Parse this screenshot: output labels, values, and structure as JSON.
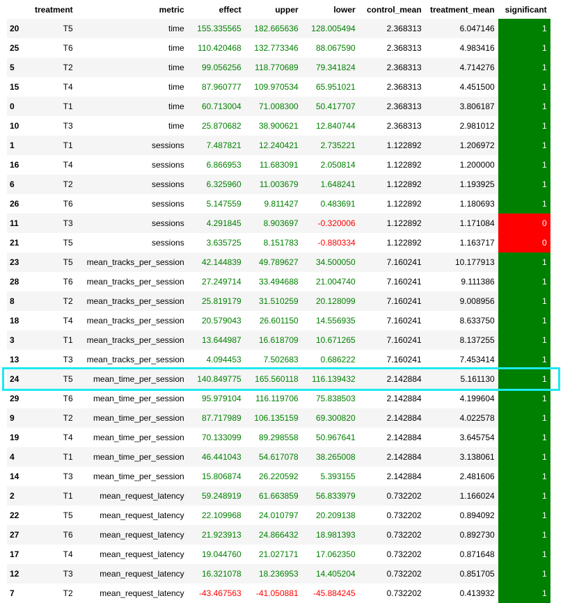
{
  "table": {
    "columns": [
      "treatment",
      "metric",
      "effect",
      "upper",
      "lower",
      "control_mean",
      "treatment_mean",
      "significant"
    ],
    "rows": [
      {
        "index": "20",
        "treatment": "T5",
        "metric": "time",
        "effect": "155.335565",
        "upper": "182.665636",
        "lower": "128.005494",
        "control_mean": "2.368313",
        "treatment_mean": "6.047146",
        "significant": "1"
      },
      {
        "index": "25",
        "treatment": "T6",
        "metric": "time",
        "effect": "110.420468",
        "upper": "132.773346",
        "lower": "88.067590",
        "control_mean": "2.368313",
        "treatment_mean": "4.983416",
        "significant": "1"
      },
      {
        "index": "5",
        "treatment": "T2",
        "metric": "time",
        "effect": "99.056256",
        "upper": "118.770689",
        "lower": "79.341824",
        "control_mean": "2.368313",
        "treatment_mean": "4.714276",
        "significant": "1"
      },
      {
        "index": "15",
        "treatment": "T4",
        "metric": "time",
        "effect": "87.960777",
        "upper": "109.970534",
        "lower": "65.951021",
        "control_mean": "2.368313",
        "treatment_mean": "4.451500",
        "significant": "1"
      },
      {
        "index": "0",
        "treatment": "T1",
        "metric": "time",
        "effect": "60.713004",
        "upper": "71.008300",
        "lower": "50.417707",
        "control_mean": "2.368313",
        "treatment_mean": "3.806187",
        "significant": "1"
      },
      {
        "index": "10",
        "treatment": "T3",
        "metric": "time",
        "effect": "25.870682",
        "upper": "38.900621",
        "lower": "12.840744",
        "control_mean": "2.368313",
        "treatment_mean": "2.981012",
        "significant": "1"
      },
      {
        "index": "1",
        "treatment": "T1",
        "metric": "sessions",
        "effect": "7.487821",
        "upper": "12.240421",
        "lower": "2.735221",
        "control_mean": "1.122892",
        "treatment_mean": "1.206972",
        "significant": "1"
      },
      {
        "index": "16",
        "treatment": "T4",
        "metric": "sessions",
        "effect": "6.866953",
        "upper": "11.683091",
        "lower": "2.050814",
        "control_mean": "1.122892",
        "treatment_mean": "1.200000",
        "significant": "1"
      },
      {
        "index": "6",
        "treatment": "T2",
        "metric": "sessions",
        "effect": "6.325960",
        "upper": "11.003679",
        "lower": "1.648241",
        "control_mean": "1.122892",
        "treatment_mean": "1.193925",
        "significant": "1"
      },
      {
        "index": "26",
        "treatment": "T6",
        "metric": "sessions",
        "effect": "5.147559",
        "upper": "9.811427",
        "lower": "0.483691",
        "control_mean": "1.122892",
        "treatment_mean": "1.180693",
        "significant": "1"
      },
      {
        "index": "11",
        "treatment": "T3",
        "metric": "sessions",
        "effect": "4.291845",
        "upper": "8.903697",
        "lower": "-0.320006",
        "control_mean": "1.122892",
        "treatment_mean": "1.171084",
        "significant": "0"
      },
      {
        "index": "21",
        "treatment": "T5",
        "metric": "sessions",
        "effect": "3.635725",
        "upper": "8.151783",
        "lower": "-0.880334",
        "control_mean": "1.122892",
        "treatment_mean": "1.163717",
        "significant": "0"
      },
      {
        "index": "23",
        "treatment": "T5",
        "metric": "mean_tracks_per_session",
        "effect": "42.144839",
        "upper": "49.789627",
        "lower": "34.500050",
        "control_mean": "7.160241",
        "treatment_mean": "10.177913",
        "significant": "1"
      },
      {
        "index": "28",
        "treatment": "T6",
        "metric": "mean_tracks_per_session",
        "effect": "27.249714",
        "upper": "33.494688",
        "lower": "21.004740",
        "control_mean": "7.160241",
        "treatment_mean": "9.111386",
        "significant": "1"
      },
      {
        "index": "8",
        "treatment": "T2",
        "metric": "mean_tracks_per_session",
        "effect": "25.819179",
        "upper": "31.510259",
        "lower": "20.128099",
        "control_mean": "7.160241",
        "treatment_mean": "9.008956",
        "significant": "1"
      },
      {
        "index": "18",
        "treatment": "T4",
        "metric": "mean_tracks_per_session",
        "effect": "20.579043",
        "upper": "26.601150",
        "lower": "14.556935",
        "control_mean": "7.160241",
        "treatment_mean": "8.633750",
        "significant": "1"
      },
      {
        "index": "3",
        "treatment": "T1",
        "metric": "mean_tracks_per_session",
        "effect": "13.644987",
        "upper": "16.618709",
        "lower": "10.671265",
        "control_mean": "7.160241",
        "treatment_mean": "8.137255",
        "significant": "1"
      },
      {
        "index": "13",
        "treatment": "T3",
        "metric": "mean_tracks_per_session",
        "effect": "4.094453",
        "upper": "7.502683",
        "lower": "0.686222",
        "control_mean": "7.160241",
        "treatment_mean": "7.453414",
        "significant": "1"
      },
      {
        "index": "24",
        "treatment": "T5",
        "metric": "mean_time_per_session",
        "effect": "140.849775",
        "upper": "165.560118",
        "lower": "116.139432",
        "control_mean": "2.142884",
        "treatment_mean": "5.161130",
        "significant": "1",
        "highlighted": true
      },
      {
        "index": "29",
        "treatment": "T6",
        "metric": "mean_time_per_session",
        "effect": "95.979104",
        "upper": "116.119706",
        "lower": "75.838503",
        "control_mean": "2.142884",
        "treatment_mean": "4.199604",
        "significant": "1"
      },
      {
        "index": "9",
        "treatment": "T2",
        "metric": "mean_time_per_session",
        "effect": "87.717989",
        "upper": "106.135159",
        "lower": "69.300820",
        "control_mean": "2.142884",
        "treatment_mean": "4.022578",
        "significant": "1"
      },
      {
        "index": "19",
        "treatment": "T4",
        "metric": "mean_time_per_session",
        "effect": "70.133099",
        "upper": "89.298558",
        "lower": "50.967641",
        "control_mean": "2.142884",
        "treatment_mean": "3.645754",
        "significant": "1"
      },
      {
        "index": "4",
        "treatment": "T1",
        "metric": "mean_time_per_session",
        "effect": "46.441043",
        "upper": "54.617078",
        "lower": "38.265008",
        "control_mean": "2.142884",
        "treatment_mean": "3.138061",
        "significant": "1"
      },
      {
        "index": "14",
        "treatment": "T3",
        "metric": "mean_time_per_session",
        "effect": "15.806874",
        "upper": "26.220592",
        "lower": "5.393155",
        "control_mean": "2.142884",
        "treatment_mean": "2.481606",
        "significant": "1"
      },
      {
        "index": "2",
        "treatment": "T1",
        "metric": "mean_request_latency",
        "effect": "59.248919",
        "upper": "61.663859",
        "lower": "56.833979",
        "control_mean": "0.732202",
        "treatment_mean": "1.166024",
        "significant": "1"
      },
      {
        "index": "22",
        "treatment": "T5",
        "metric": "mean_request_latency",
        "effect": "22.109968",
        "upper": "24.010797",
        "lower": "20.209138",
        "control_mean": "0.732202",
        "treatment_mean": "0.894092",
        "significant": "1"
      },
      {
        "index": "27",
        "treatment": "T6",
        "metric": "mean_request_latency",
        "effect": "21.923913",
        "upper": "24.866432",
        "lower": "18.981393",
        "control_mean": "0.732202",
        "treatment_mean": "0.892730",
        "significant": "1"
      },
      {
        "index": "17",
        "treatment": "T4",
        "metric": "mean_request_latency",
        "effect": "19.044760",
        "upper": "21.027171",
        "lower": "17.062350",
        "control_mean": "0.732202",
        "treatment_mean": "0.871648",
        "significant": "1"
      },
      {
        "index": "12",
        "treatment": "T3",
        "metric": "mean_request_latency",
        "effect": "16.321078",
        "upper": "18.236953",
        "lower": "14.405204",
        "control_mean": "0.732202",
        "treatment_mean": "0.851705",
        "significant": "1"
      },
      {
        "index": "7",
        "treatment": "T2",
        "metric": "mean_request_latency",
        "effect": "-43.467563",
        "upper": "-41.050881",
        "lower": "-45.884245",
        "control_mean": "0.732202",
        "treatment_mean": "0.413932",
        "significant": "1"
      }
    ]
  },
  "colors": {
    "positive_text": "#008000",
    "negative_text": "#ff0000",
    "significant_true_bg": "#008000",
    "significant_false_bg": "#ff0000",
    "highlight_border": "#1de9f0"
  }
}
